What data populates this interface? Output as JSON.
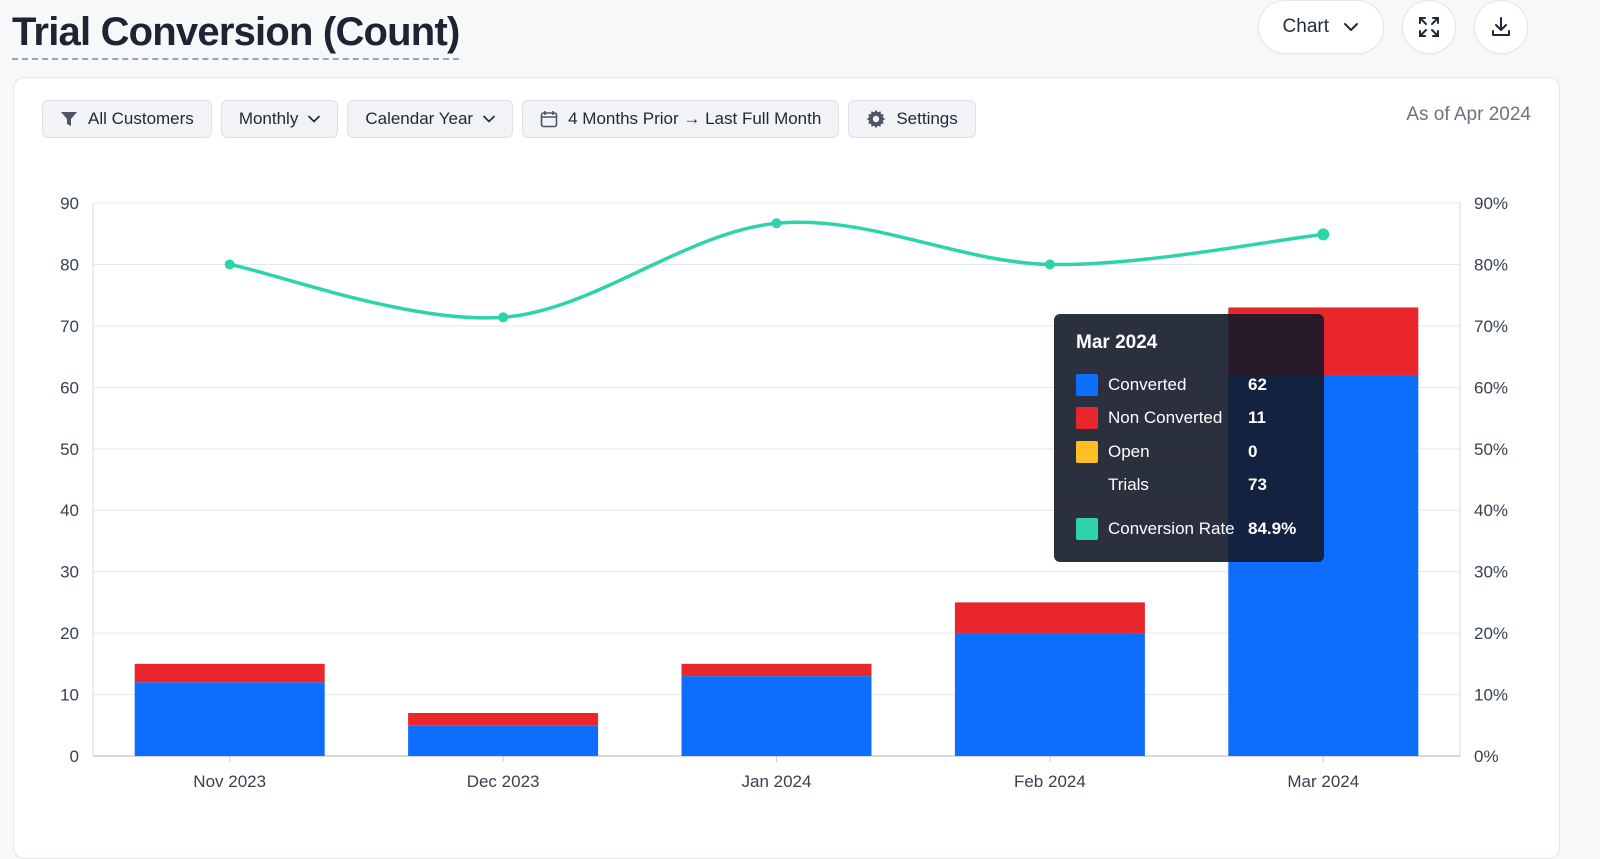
{
  "title": "Trial Conversion (Count)",
  "top_actions": {
    "view_label": "Chart"
  },
  "filters": {
    "customers": "All Customers",
    "granularity": "Monthly",
    "year_type": "Calendar Year",
    "range": "4 Months Prior → Last Full Month",
    "settings": "Settings"
  },
  "as_of": "As of Apr 2024",
  "colors": {
    "converted": "#0d6efd",
    "non_converted": "#e8262b",
    "open": "#fbbf24",
    "conversion_rate": "#2dd4aa"
  },
  "chart_data": {
    "type": "bar",
    "stacked": true,
    "categories": [
      "Nov 2023",
      "Dec 2023",
      "Jan 2024",
      "Feb 2024",
      "Mar 2024"
    ],
    "series": [
      {
        "name": "Converted",
        "values": [
          12,
          5,
          13,
          20,
          62
        ]
      },
      {
        "name": "Non Converted",
        "values": [
          3,
          2,
          2,
          5,
          11
        ]
      },
      {
        "name": "Open",
        "values": [
          0,
          0,
          0,
          0,
          0
        ]
      }
    ],
    "line_series": {
      "name": "Conversion Rate",
      "values": [
        80,
        71.4,
        86.7,
        80,
        84.9
      ]
    },
    "ylim": [
      0,
      90
    ],
    "y_ticks": [
      "0",
      "10",
      "20",
      "30",
      "40",
      "50",
      "60",
      "70",
      "80",
      "90"
    ],
    "y2lim": [
      0,
      90
    ],
    "y2_ticks": [
      "0%",
      "10%",
      "20%",
      "30%",
      "40%",
      "50%",
      "60%",
      "70%",
      "80%",
      "90%"
    ],
    "grid": true
  },
  "tooltip": {
    "title": "Mar 2024",
    "rows": [
      {
        "label": "Converted",
        "value": "62"
      },
      {
        "label": "Non Converted",
        "value": "11"
      },
      {
        "label": "Open",
        "value": "0"
      },
      {
        "label": "Trials",
        "value": "73"
      },
      {
        "label": "Conversion Rate",
        "value": "84.9%"
      }
    ]
  }
}
